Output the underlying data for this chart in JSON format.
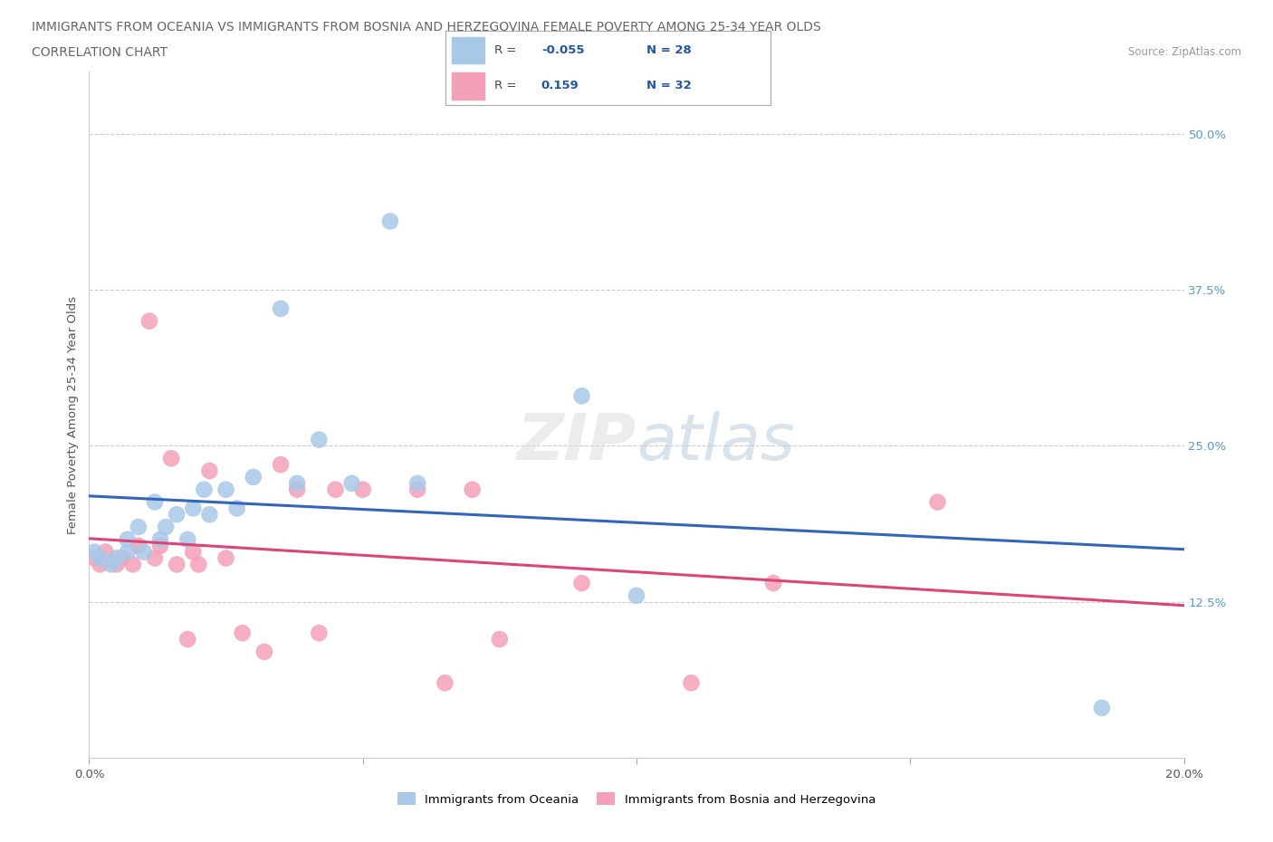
{
  "title_line1": "IMMIGRANTS FROM OCEANIA VS IMMIGRANTS FROM BOSNIA AND HERZEGOVINA FEMALE POVERTY AMONG 25-34 YEAR OLDS",
  "title_line2": "CORRELATION CHART",
  "source": "Source: ZipAtlas.com",
  "ylabel": "Female Poverty Among 25-34 Year Olds",
  "xlim": [
    0.0,
    0.2
  ],
  "ylim": [
    0.0,
    0.55
  ],
  "yticks": [
    0.0,
    0.125,
    0.25,
    0.375,
    0.5
  ],
  "ytick_labels": [
    "",
    "12.5%",
    "25.0%",
    "37.5%",
    "50.0%"
  ],
  "r_oceania": -0.055,
  "n_oceania": 28,
  "r_bosnia": 0.159,
  "n_bosnia": 32,
  "color_oceania": "#a8c8e8",
  "color_bosnia": "#f4a0b8",
  "line_color_oceania": "#3366bb",
  "line_color_bosnia": "#dd4477",
  "oceania_x": [
    0.001,
    0.002,
    0.004,
    0.005,
    0.007,
    0.007,
    0.009,
    0.01,
    0.012,
    0.013,
    0.014,
    0.016,
    0.018,
    0.019,
    0.021,
    0.022,
    0.025,
    0.027,
    0.03,
    0.035,
    0.038,
    0.042,
    0.048,
    0.055,
    0.06,
    0.09,
    0.1,
    0.185
  ],
  "oceania_y": [
    0.165,
    0.16,
    0.155,
    0.16,
    0.165,
    0.175,
    0.185,
    0.165,
    0.205,
    0.175,
    0.185,
    0.195,
    0.175,
    0.2,
    0.215,
    0.195,
    0.215,
    0.2,
    0.225,
    0.36,
    0.22,
    0.255,
    0.22,
    0.43,
    0.22,
    0.29,
    0.13,
    0.04
  ],
  "bosnia_x": [
    0.001,
    0.002,
    0.003,
    0.005,
    0.006,
    0.008,
    0.009,
    0.011,
    0.012,
    0.013,
    0.015,
    0.016,
    0.018,
    0.019,
    0.02,
    0.022,
    0.025,
    0.028,
    0.032,
    0.035,
    0.038,
    0.042,
    0.045,
    0.05,
    0.06,
    0.065,
    0.07,
    0.075,
    0.09,
    0.11,
    0.125,
    0.155
  ],
  "bosnia_y": [
    0.16,
    0.155,
    0.165,
    0.155,
    0.16,
    0.155,
    0.17,
    0.35,
    0.16,
    0.17,
    0.24,
    0.155,
    0.095,
    0.165,
    0.155,
    0.23,
    0.16,
    0.1,
    0.085,
    0.235,
    0.215,
    0.1,
    0.215,
    0.215,
    0.215,
    0.06,
    0.215,
    0.095,
    0.14,
    0.06,
    0.14,
    0.205
  ]
}
